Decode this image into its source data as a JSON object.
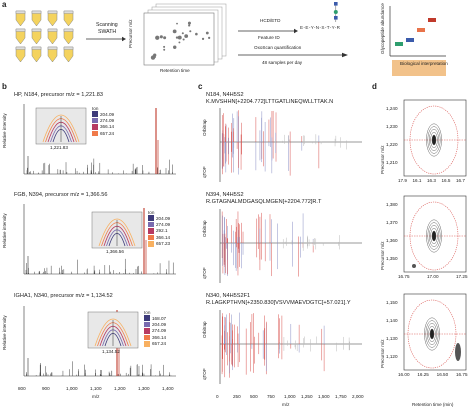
{
  "panel_labels": {
    "a": "a",
    "b": "b",
    "c": "c",
    "d": "d"
  },
  "workflow": {
    "scanning": "Scanning",
    "swath": "SWATH",
    "precursor_axis": "Precursor m/z",
    "retention_axis": "Retention time",
    "hcd_etd": "HCD/ETD",
    "feature_id": "Feature ID",
    "sequence": "E-E-Y-N-S-T-Y-R",
    "oxoscan": "OxoScan quantification",
    "samples": "48 samples per day",
    "abundance_axis": "Glycopeptide abundance",
    "bio_interp": "Biological interpretation"
  },
  "panel_b": {
    "ylabel": "Relative intensity",
    "xlabel": "m/z",
    "ion_label": "Ion",
    "x_ticks": [
      "800",
      "900",
      "1,000",
      "1,100",
      "1,200",
      "1,300",
      "1,400"
    ],
    "spectra": [
      {
        "title": "HP, N184, precursor m/z = 1,221.83",
        "inset_label": "1,221.83",
        "ions": [
          "204.09",
          "274.09",
          "366.14",
          "657.24"
        ]
      },
      {
        "title": "FGB, N394, precursor m/z = 1,366.56",
        "inset_label": "1,366.56",
        "ions": [
          "204.09",
          "274.09",
          "292.1",
          "366.14",
          "657.23"
        ]
      },
      {
        "title": "IGHA1, N340, precursor m/z = 1,134.52",
        "inset_label": "1,134.52",
        "ions": [
          "168.07",
          "204.09",
          "274.09",
          "366.14",
          "657.24"
        ]
      }
    ]
  },
  "panel_c": {
    "xlabel": "m/z",
    "orbitrap": "Orbitrap",
    "qtof": "qTOF",
    "x_ticks": [
      "0",
      "250",
      "500",
      "750",
      "1,000",
      "1,250",
      "1,500",
      "1,750",
      "2,000"
    ],
    "spectra": [
      {
        "site": "N184, N4H5S2",
        "peptide": "K.MVSHHN[+2204.772]LTTGATLINEQWLLTTAK.N"
      },
      {
        "site": "N394, N4H5S2",
        "peptide": "R.GTAGNALMDGASQLMGEN[+2204.772]R.T"
      },
      {
        "site": "N340, N4H5S2F1",
        "peptide": "R.LAGKPTHVN[+2350.830]VSVVMAEVDGTC[+57.021].Y"
      }
    ]
  },
  "panel_d": {
    "ylabel": "Precursor m/z",
    "xlabel": "Retention time (min)",
    "plots": [
      {
        "y_ticks": [
          "1,240",
          "1,230",
          "1,220",
          "1,210"
        ],
        "x_ticks": [
          "17.9",
          "16.1",
          "16.3",
          "16.5",
          "16.7"
        ]
      },
      {
        "y_ticks": [
          "1,380",
          "1,370",
          "1,360",
          "1,350"
        ],
        "x_ticks": [
          "16.75",
          "17.00",
          "17.25"
        ]
      },
      {
        "y_ticks": [
          "1,150",
          "1,140",
          "1,130",
          "1,120"
        ],
        "x_ticks": [
          "16.00",
          "16.25",
          "16.50",
          "16.75"
        ]
      }
    ]
  },
  "colors": {
    "orange": "#e8734a",
    "red": "#c0392b",
    "purple": "#5b4b9a",
    "dark": "#2b2b2b",
    "blue": "#3b5bab",
    "green": "#2e9e6e",
    "ions": [
      "#3d3a7a",
      "#7a6bb0",
      "#b73a62",
      "#f07a4a",
      "#f8b060"
    ]
  }
}
